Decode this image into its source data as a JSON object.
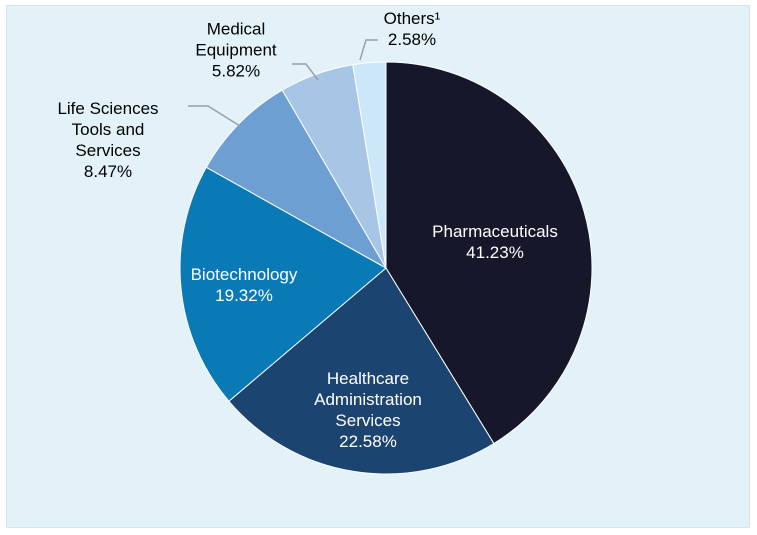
{
  "chart_data": {
    "type": "pie",
    "categories": [
      "Pharmaceuticals",
      "Healthcare Administration Services",
      "Biotechnology",
      "Life Sciences Tools and Services",
      "Medical Equipment",
      "Others¹"
    ],
    "values": [
      41.23,
      22.58,
      19.32,
      8.47,
      5.82,
      2.58
    ],
    "value_labels": [
      "41.23%",
      "22.58%",
      "19.32%",
      "8.47%",
      "5.82%",
      "2.58%"
    ],
    "colors": [
      "#17172b",
      "#1b4470",
      "#0a7ab7",
      "#6d9fd2",
      "#a7c5e5",
      "#cce8f8"
    ]
  }
}
